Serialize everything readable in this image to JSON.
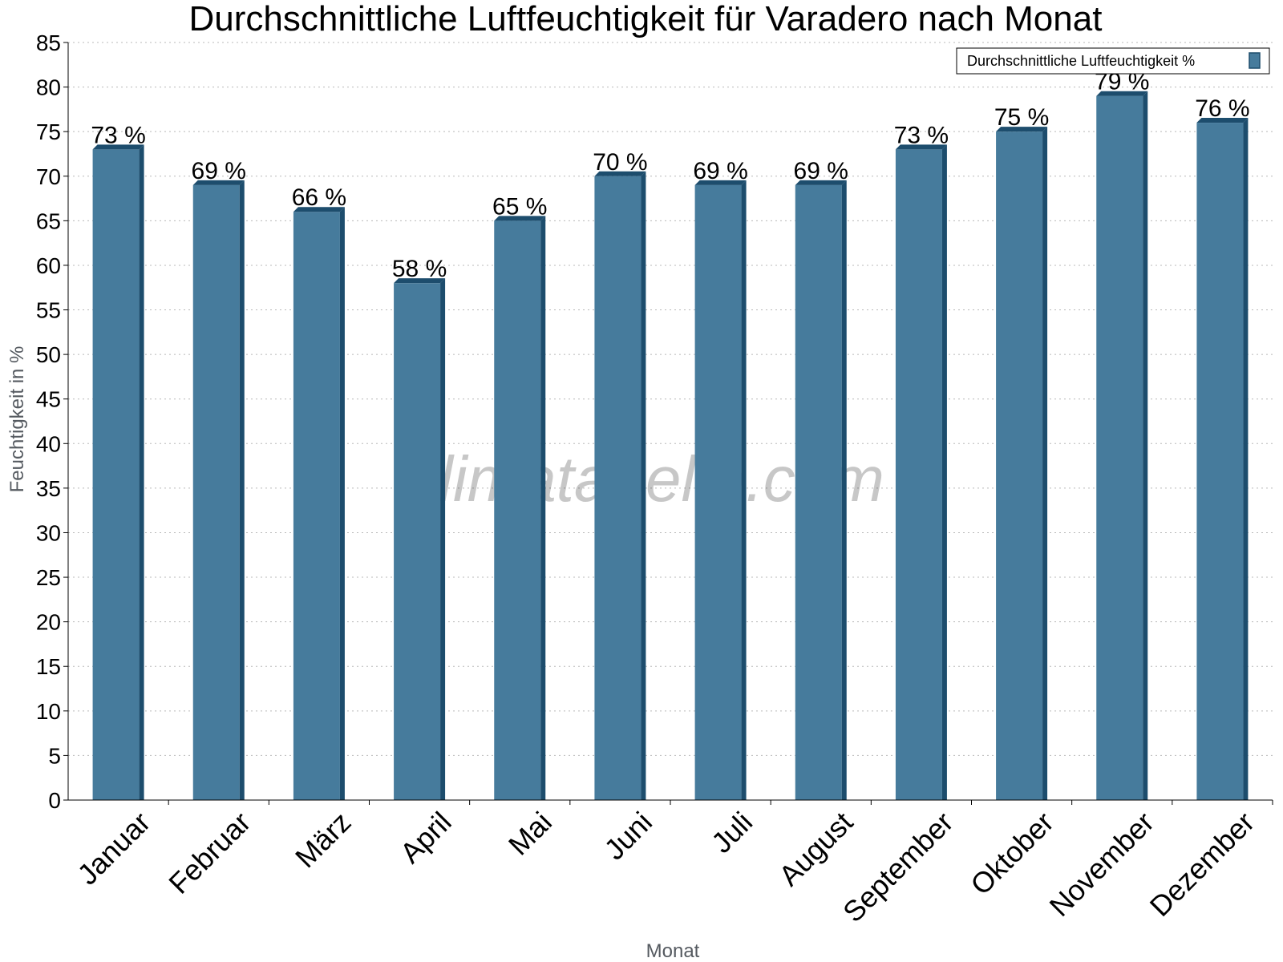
{
  "chart_data": {
    "type": "bar",
    "title": "Durchschnittliche Luftfeuchtigkeit für Varadero nach Monat",
    "xlabel": "Monat",
    "ylabel": "Feuchtigkeit in %",
    "categories": [
      "Januar",
      "Februar",
      "März",
      "April",
      "Mai",
      "Juni",
      "Juli",
      "August",
      "September",
      "Oktober",
      "November",
      "Dezember"
    ],
    "series": [
      {
        "name": "Durchschnittliche Luftfeuchtigkeit %",
        "values": [
          73,
          69,
          66,
          58,
          65,
          70,
          69,
          69,
          73,
          75,
          79,
          76
        ],
        "labels": [
          "73 %",
          "69 %",
          "66 %",
          "58 %",
          "65 %",
          "70 %",
          "69 %",
          "69 %",
          "73 %",
          "75 %",
          "79 %",
          "76 %"
        ],
        "color": "#467b9c"
      }
    ],
    "ylim": [
      0,
      85
    ],
    "yticks": [
      0,
      5,
      10,
      15,
      20,
      25,
      30,
      35,
      40,
      45,
      50,
      55,
      60,
      65,
      70,
      75,
      80,
      85
    ],
    "grid": true,
    "legend_position": "top-right",
    "watermark": "klimatabelle.com"
  }
}
